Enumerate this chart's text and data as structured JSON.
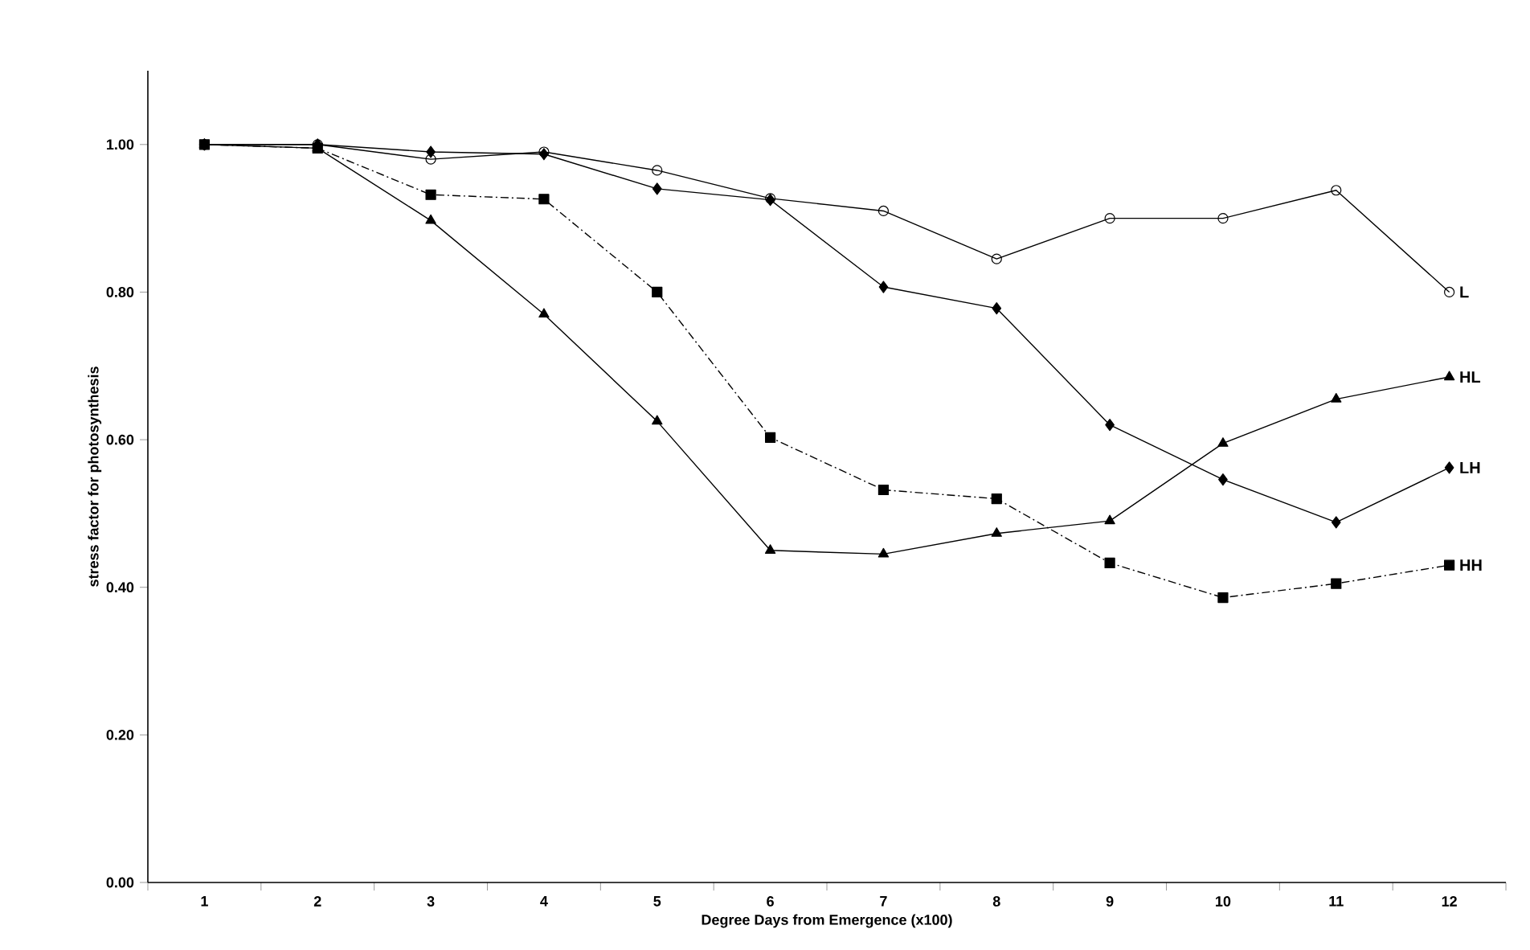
{
  "chart_data": {
    "type": "line",
    "xlabel": "Degree Days from Emergence (x100)",
    "ylabel": "stress factor for photosynthesis",
    "categories": [
      "1",
      "2",
      "3",
      "4",
      "5",
      "6",
      "7",
      "8",
      "9",
      "10",
      "11",
      "12"
    ],
    "ylim": [
      0,
      1.1
    ],
    "yticks": [
      {
        "value": 0,
        "label": "0.00"
      },
      {
        "value": 0.2,
        "label": "0.20"
      },
      {
        "value": 0.4,
        "label": "0.40"
      },
      {
        "value": 0.6,
        "label": "0.60"
      },
      {
        "value": 0.8,
        "label": "0.80"
      },
      {
        "value": 1.0,
        "label": "1.00"
      }
    ],
    "grid": false,
    "legend": false,
    "series": [
      {
        "name": "L",
        "color": "#000000",
        "marker": "circle",
        "line_style": "solid",
        "values": [
          1.0,
          1.0,
          0.98,
          0.99,
          0.965,
          0.927,
          0.91,
          0.845,
          0.9,
          0.9,
          0.938,
          0.8
        ]
      },
      {
        "name": "LH",
        "color": "#000000",
        "marker": "diamond",
        "line_style": "solid",
        "values": [
          1.0,
          1.0,
          0.99,
          0.987,
          0.94,
          0.925,
          0.807,
          0.778,
          0.62,
          0.546,
          0.488,
          0.562
        ]
      },
      {
        "name": "HH",
        "color": "#000000",
        "marker": "square",
        "line_style": "dashdot",
        "values": [
          1.0,
          0.995,
          0.932,
          0.926,
          0.8,
          0.603,
          0.532,
          0.52,
          0.433,
          0.386,
          0.405,
          0.43
        ]
      },
      {
        "name": "HL",
        "color": "#000000",
        "marker": "triangle",
        "line_style": "solid",
        "values": [
          1.0,
          0.995,
          0.897,
          0.77,
          0.625,
          0.45,
          0.445,
          0.473,
          0.49,
          0.595,
          0.655,
          0.685
        ]
      }
    ]
  }
}
